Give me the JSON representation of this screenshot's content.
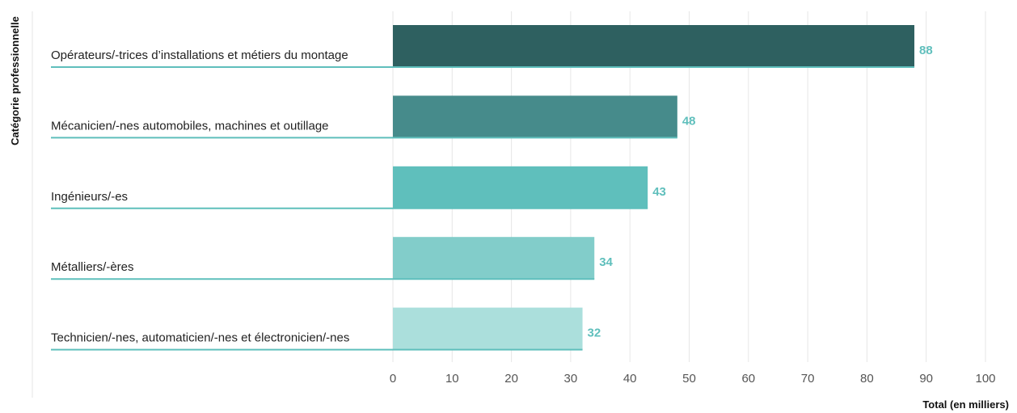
{
  "chart_data": {
    "type": "bar",
    "orientation": "horizontal",
    "categories": [
      "Opérateurs/-trices d’installations et métiers du montage",
      "Mécanicien/-nes automobiles, machines et outillage",
      "Ingénieurs/-es",
      "Métalliers/-ères",
      "Technicien/-nes, automaticien/-nes et électronicien/-nes"
    ],
    "values": [
      88,
      48,
      43,
      34,
      32
    ],
    "value_labels": [
      "88",
      "48",
      "43",
      "34",
      "32"
    ],
    "xlabel": "Total (en milliers)",
    "ylabel": "Catégorie professionnelle",
    "xlim": [
      0,
      100
    ],
    "xticks": [
      "0",
      "10",
      "20",
      "30",
      "40",
      "50",
      "60",
      "70",
      "80",
      "90",
      "100"
    ],
    "grid": "vertical",
    "colors": {
      "bars": [
        "#2e6060",
        "#468b8b",
        "#5fbfbc",
        "#82cdca",
        "#abdfdc"
      ],
      "value_label": "#5fbfbc",
      "underline": "#5fbfbc",
      "grid": "#e6e6e6"
    }
  }
}
